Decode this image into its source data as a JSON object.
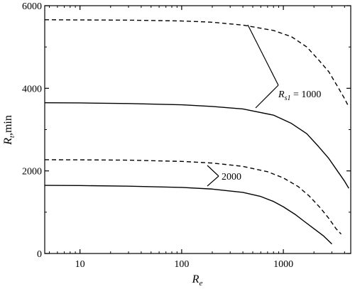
{
  "chart_data": {
    "type": "line",
    "title": "",
    "xlabel_main": "R",
    "xlabel_sub": "e",
    "ylabel_main": "R",
    "ylabel_sub": "t",
    "ylabel_suffix": ",min",
    "xscale": "log",
    "xlim": [
      4.5,
      4600
    ],
    "ylim": [
      0,
      6000
    ],
    "x_ticks": [
      10,
      100,
      1000
    ],
    "x_tick_labels": [
      "10",
      "100",
      "1000"
    ],
    "y_ticks": [
      0,
      2000,
      4000,
      6000
    ],
    "y_tick_labels": [
      "0",
      "2000",
      "4000",
      "6000"
    ],
    "grid": false,
    "legend": "none",
    "annotations": {
      "rs1_1000_prefix": "R",
      "rs1_1000_sub": "s1",
      "rs1_1000_suffix": " = 1000",
      "rs2000": "2000"
    },
    "series": [
      {
        "style": "dashed",
        "group": "1000",
        "x": [
          4.5,
          10,
          30,
          100,
          200,
          400,
          800,
          1200,
          1700,
          2200,
          2800,
          3400,
          4000,
          4400
        ],
        "y": [
          5660,
          5655,
          5650,
          5630,
          5600,
          5530,
          5400,
          5250,
          5000,
          4700,
          4400,
          4050,
          3750,
          3550
        ]
      },
      {
        "style": "solid",
        "group": "1000",
        "x": [
          4.5,
          10,
          30,
          100,
          200,
          400,
          800,
          1200,
          1700,
          2200,
          2800,
          3400,
          4000,
          4400
        ],
        "y": [
          3650,
          3645,
          3630,
          3600,
          3560,
          3500,
          3350,
          3150,
          2900,
          2600,
          2300,
          2000,
          1750,
          1580
        ]
      },
      {
        "style": "dashed",
        "group": "2000",
        "x": [
          4.5,
          10,
          30,
          100,
          200,
          400,
          700,
          1000,
          1400,
          1800,
          2300,
          2800,
          3300,
          3700
        ],
        "y": [
          2270,
          2268,
          2260,
          2230,
          2190,
          2110,
          1980,
          1830,
          1620,
          1390,
          1110,
          850,
          600,
          470
        ]
      },
      {
        "style": "solid",
        "group": "2000",
        "x": [
          4.5,
          10,
          30,
          100,
          200,
          400,
          600,
          800,
          1000,
          1300,
          1600,
          2000,
          2500,
          3000
        ],
        "y": [
          1650,
          1645,
          1630,
          1600,
          1560,
          1480,
          1380,
          1260,
          1130,
          950,
          780,
          600,
          420,
          230
        ]
      }
    ]
  }
}
